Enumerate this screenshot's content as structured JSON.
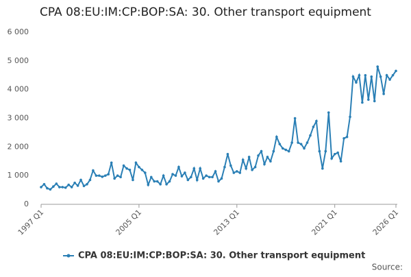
{
  "chart_data": {
    "type": "line",
    "title": "CPA 08:EU:IM:CP:BOP:SA: 30. Other transport equipment",
    "categories": [
      "1997 Q1",
      null,
      null,
      null,
      null,
      null,
      null,
      null,
      null,
      null,
      null,
      null,
      null,
      null,
      null,
      null,
      null,
      null,
      null,
      null,
      null,
      null,
      null,
      null,
      null,
      null,
      null,
      null,
      null,
      null,
      null,
      null,
      "2005 Q1",
      null,
      null,
      null,
      null,
      null,
      null,
      null,
      null,
      null,
      null,
      null,
      null,
      null,
      null,
      null,
      null,
      null,
      null,
      null,
      null,
      null,
      null,
      null,
      null,
      null,
      null,
      null,
      null,
      null,
      null,
      null,
      "2013 Q1",
      null,
      null,
      null,
      null,
      null,
      null,
      null,
      null,
      null,
      null,
      null,
      null,
      null,
      null,
      null,
      null,
      null,
      null,
      null,
      null,
      null,
      null,
      null,
      null,
      null,
      null,
      null,
      null,
      null,
      null,
      null,
      "2021 Q1",
      null,
      null,
      null,
      null,
      null,
      null,
      null,
      null,
      null,
      null,
      null,
      null,
      null,
      null,
      null,
      null,
      null,
      null,
      null,
      "2026 Q1"
    ],
    "series": [
      {
        "name": "CPA 08:EU:IM:CP:BOP:SA: 30. Other transport equipment",
        "color": "#2a7fb5",
        "values": [
          600,
          700,
          560,
          520,
          620,
          720,
          600,
          600,
          580,
          680,
          600,
          750,
          650,
          850,
          640,
          700,
          850,
          1180,
          1000,
          1000,
          960,
          1000,
          1050,
          1450,
          900,
          1000,
          950,
          1350,
          1250,
          1200,
          850,
          1450,
          1300,
          1200,
          1100,
          680,
          950,
          800,
          800,
          700,
          1000,
          700,
          800,
          1050,
          1000,
          1300,
          980,
          1100,
          850,
          950,
          1250,
          850,
          1250,
          900,
          1000,
          950,
          950,
          1150,
          800,
          900,
          1300,
          1750,
          1350,
          1100,
          1150,
          1100,
          1550,
          1250,
          1650,
          1200,
          1300,
          1700,
          1850,
          1400,
          1650,
          1500,
          1850,
          2350,
          2100,
          1950,
          1900,
          1850,
          2150,
          3000,
          2150,
          2100,
          1950,
          2150,
          2400,
          2700,
          2900,
          1850,
          1250,
          1850,
          3200,
          1600,
          1750,
          1800,
          1500,
          2300,
          2350,
          3050,
          4450,
          4250,
          4500,
          3550,
          4500,
          3650,
          4450,
          3600,
          4800,
          4450,
          3850,
          4500,
          4350,
          4500,
          4650
        ]
      }
    ],
    "ylim": [
      0,
      6000
    ],
    "yticks": [
      0,
      {
        "value": 1000,
        "label": "1 000"
      },
      {
        "value": 2000,
        "label": "2 000"
      },
      {
        "value": 3000,
        "label": "3 000"
      },
      {
        "value": 4000,
        "label": "4 000"
      },
      {
        "value": 5000,
        "label": "5 000"
      },
      {
        "value": 6000,
        "label": "6 000"
      }
    ],
    "source": "Source:"
  }
}
